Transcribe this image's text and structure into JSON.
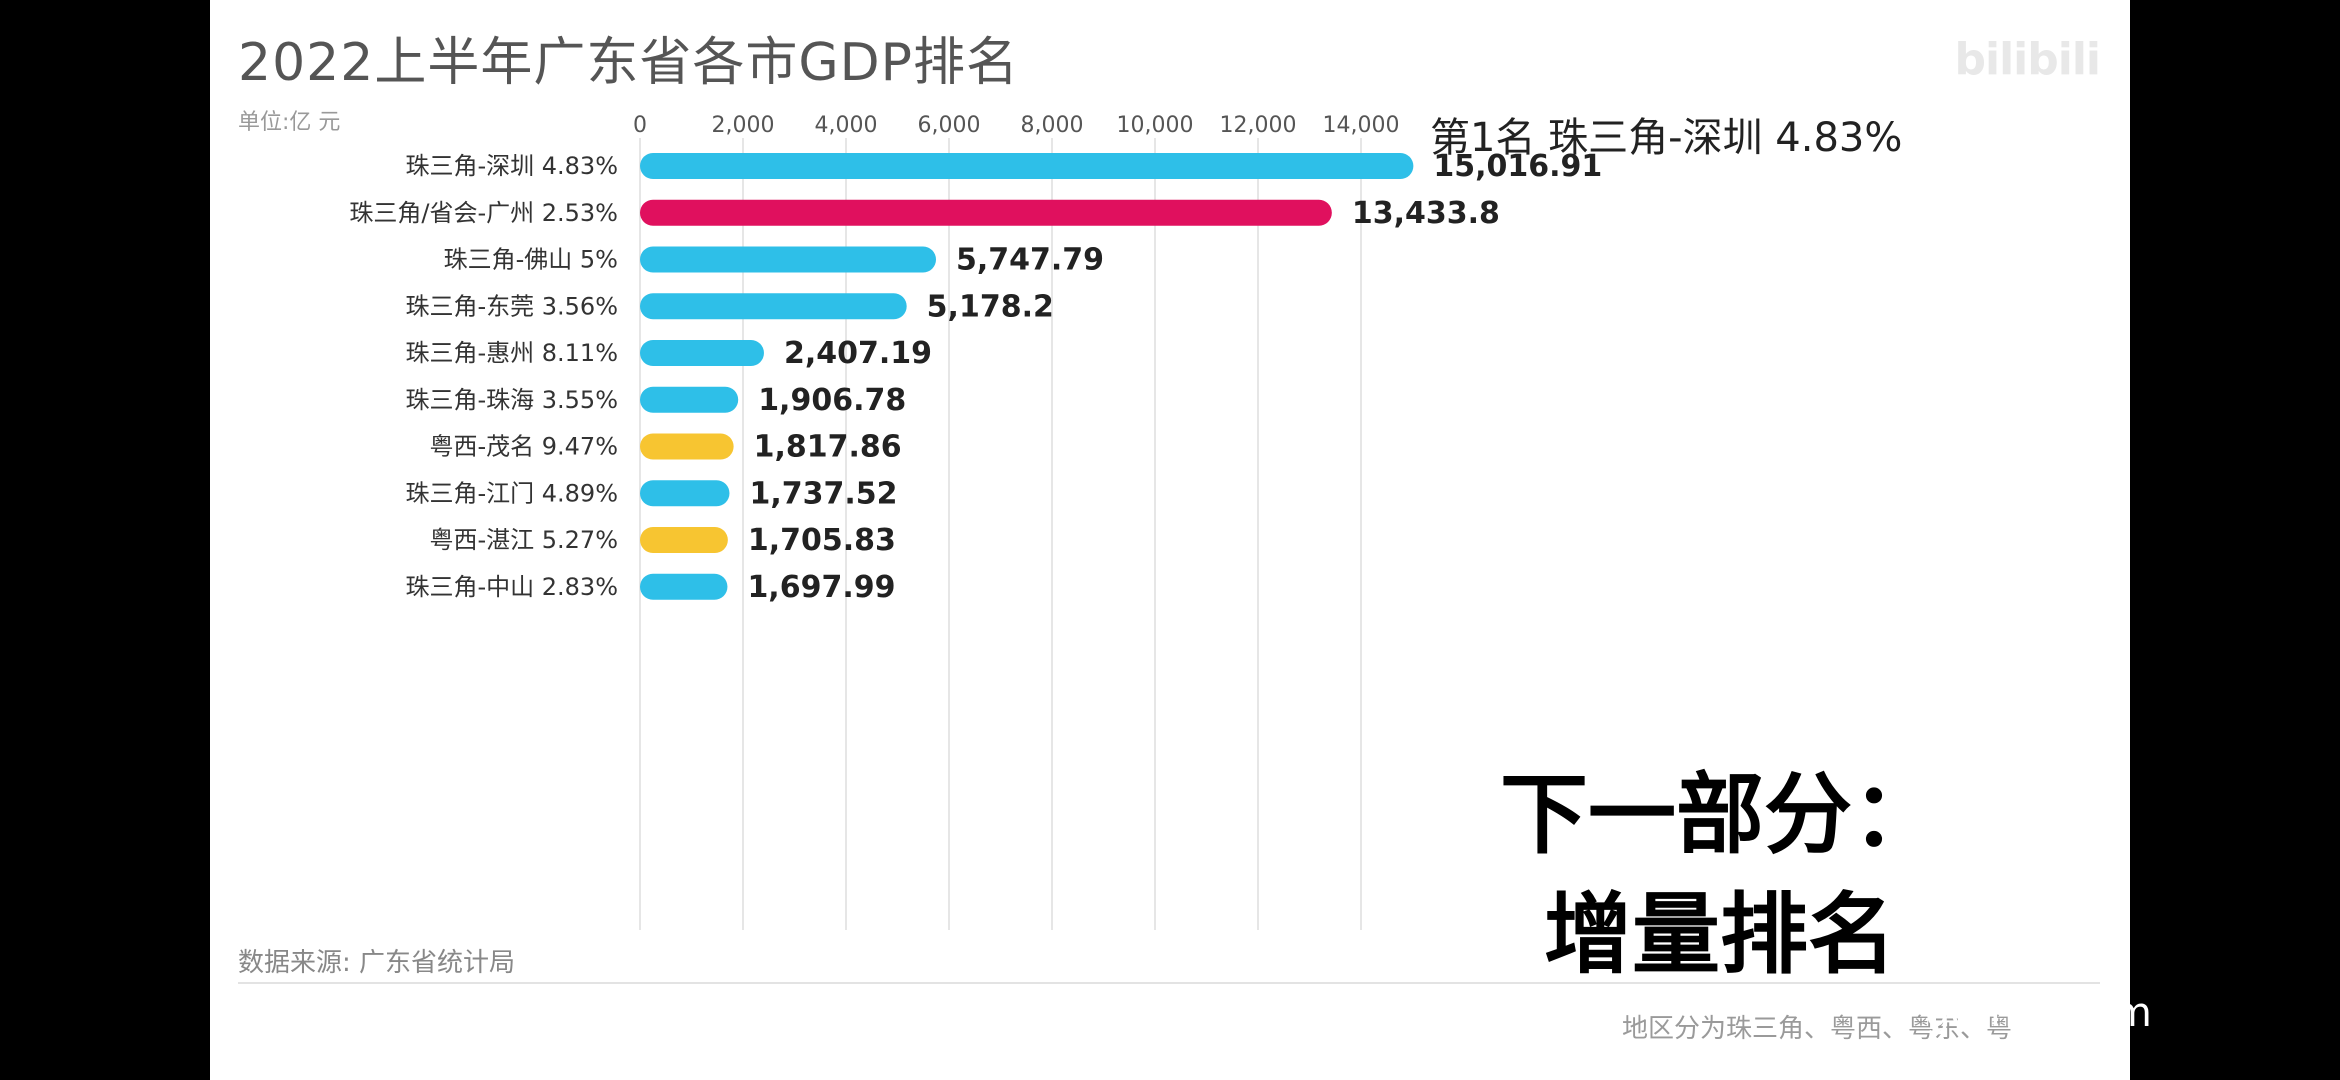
{
  "page": {
    "title": "2022上半年广东省各市GDP排名",
    "unit": "单位:亿 元",
    "rank_headline": "第1名 珠三角-深圳 4.83%",
    "logo": "bilibili",
    "source": "数据来源: 广东省统计局",
    "footer_note": "地区分为珠三角、粤西、粤东、粤",
    "caption_line1": "下一部分：",
    "caption_line2": "增量排名",
    "watermark": "gdmm.com"
  },
  "colors": {
    "珠三角": "#2ebfe8",
    "省会": "#e0105e",
    "粤西": "#f7c531",
    "gridline": "#e6e6e6"
  },
  "chart_data": {
    "type": "bar",
    "orientation": "horizontal",
    "title": "2022上半年广东省各市GDP排名",
    "xlim": [
      0,
      15000
    ],
    "x_ticks": [
      0,
      2000,
      4000,
      6000,
      8000,
      10000,
      12000,
      14000
    ],
    "x_tick_labels": [
      "0",
      "2,000",
      "4,000",
      "6,000",
      "8,000",
      "10,000",
      "12,000",
      "14,000"
    ],
    "grid": true,
    "categories": [
      "珠三角-深圳 4.83%",
      "珠三角/省会-广州 2.53%",
      "珠三角-佛山 5%",
      "珠三角-东莞 3.56%",
      "珠三角-惠州 8.11%",
      "珠三角-珠海 3.55%",
      "粤西-茂名 9.47%",
      "珠三角-江门 4.89%",
      "粤西-湛江 5.27%",
      "珠三角-中山 2.83%"
    ],
    "values": [
      15016.91,
      13433.8,
      5747.79,
      5178.2,
      2407.19,
      1906.78,
      1817.86,
      1737.52,
      1705.83,
      1697.99
    ],
    "value_labels": [
      "15,016.91",
      "13,433.8",
      "5,747.79",
      "5,178.2",
      "2,407.19",
      "1,906.78",
      "1,817.86",
      "1,737.52",
      "1,705.83",
      "1,697.99"
    ],
    "region": [
      "珠三角",
      "省会",
      "珠三角",
      "珠三角",
      "珠三角",
      "珠三角",
      "粤西",
      "珠三角",
      "粤西",
      "珠三角"
    ]
  }
}
